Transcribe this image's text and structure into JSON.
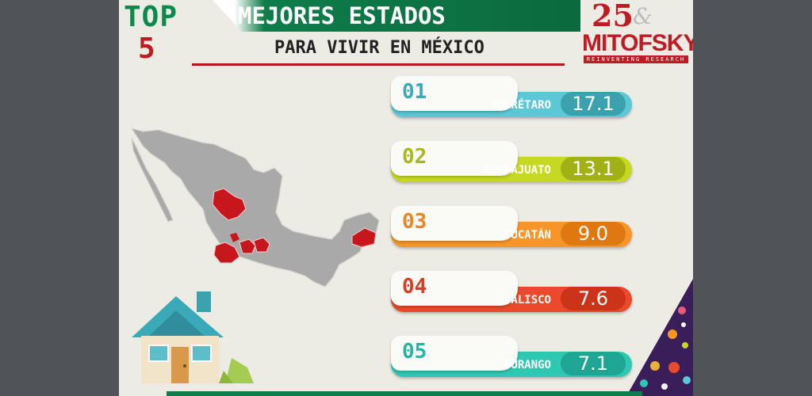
{
  "header": {
    "top_word": "TOP",
    "top_number": "5",
    "title_line1": "MEJORES ESTADOS",
    "title_line2": "PARA VIVIR EN MÉXICO"
  },
  "logo": {
    "anniversary": "25",
    "name": "MITOFSKY",
    "tagline": "REINVENTING RESEARCH"
  },
  "ranking": [
    {
      "rank": "01",
      "state": "QUERÉTARO",
      "value": "17.1",
      "bar_color": "#5cc7d5",
      "pill_color": "#3aa1ad",
      "num_color": "#3aa9b8"
    },
    {
      "rank": "02",
      "state": "GUANAJUATO",
      "value": "13.1",
      "bar_color": "#c7d821",
      "pill_color": "#a0b015",
      "num_color": "#a8b81b"
    },
    {
      "rank": "03",
      "state": "YUCATÁN",
      "value": "9.0",
      "bar_color": "#f5952a",
      "pill_color": "#e07812",
      "num_color": "#ea8520"
    },
    {
      "rank": "04",
      "state": "JALISCO",
      "value": "7.6",
      "bar_color": "#ea4a2a",
      "pill_color": "#cb3418",
      "num_color": "#dc3c22"
    },
    {
      "rank": "05",
      "state": "DURANGO",
      "value": "7.1",
      "bar_color": "#2ec8b2",
      "pill_color": "#1ea594",
      "num_color": "#24b5a2"
    }
  ],
  "map": {
    "highlight_color": "#c8161d",
    "base_color": "#a9a9a9"
  },
  "icons": [
    "map-icon",
    "house-icon",
    "decor-icon"
  ]
}
